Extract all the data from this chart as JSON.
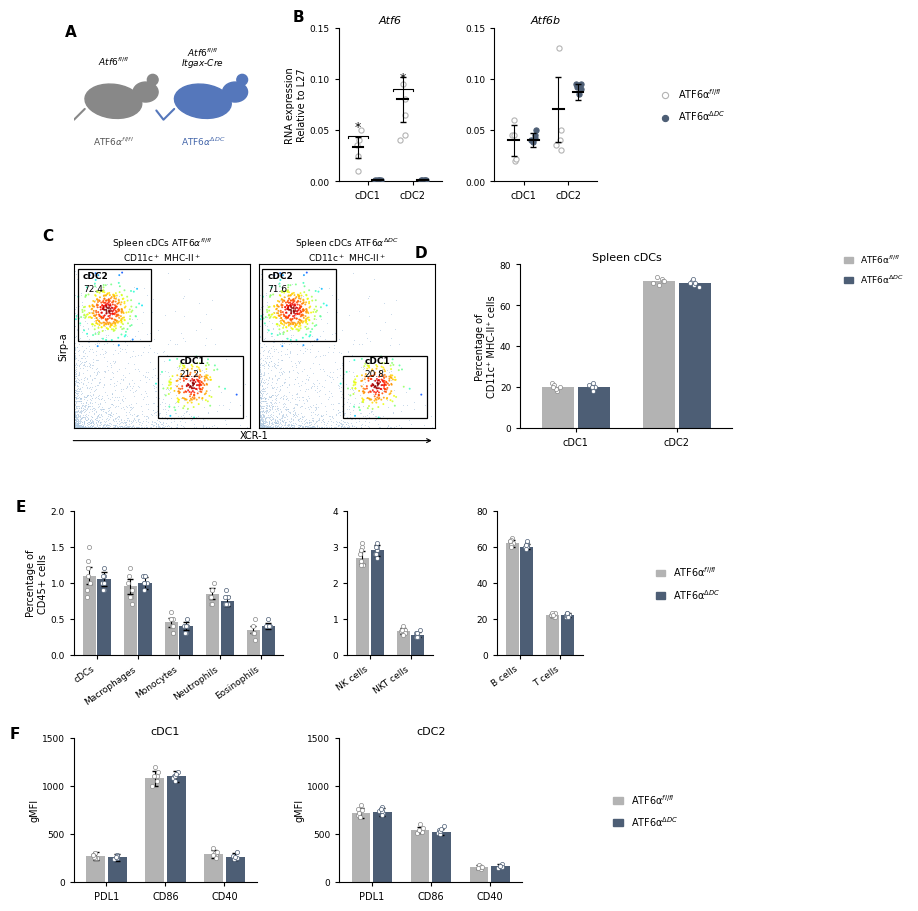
{
  "color_light": "#b3b3b3",
  "color_dark": "#4d5e75",
  "B_Atf6_categories": [
    "cDC1",
    "cDC2"
  ],
  "B_Atf6_light_mean": [
    0.033,
    0.08
  ],
  "B_Atf6_light_err": [
    0.01,
    0.022
  ],
  "B_Atf6_dark_mean": [
    0.001,
    0.001
  ],
  "B_Atf6_dark_err": [
    0.0003,
    0.0003
  ],
  "B_Atf6_light_dots_cDC1": [
    0.025,
    0.04,
    0.035,
    0.01,
    0.05
  ],
  "B_Atf6_light_dots_cDC2": [
    0.095,
    0.045,
    0.065,
    0.08,
    0.04
  ],
  "B_Atf6_dark_dots_cDC1": [
    0.001,
    0.0015,
    0.001,
    0.001,
    0.001
  ],
  "B_Atf6_dark_dots_cDC2": [
    0.001,
    0.001,
    0.0015,
    0.001,
    0.001
  ],
  "B_Atf6_ylim": [
    0,
    0.15
  ],
  "B_Atf6_yticks": [
    0.0,
    0.05,
    0.1,
    0.15
  ],
  "B_Atf6_title": "Atf6",
  "B_Atf6_ylabel": "RNA expression\nRelative to L27",
  "B_Atf6b_categories": [
    "cDC1",
    "cDC2"
  ],
  "B_Atf6b_light_mean": [
    0.04,
    0.07
  ],
  "B_Atf6b_light_err": [
    0.015,
    0.032
  ],
  "B_Atf6b_dark_mean": [
    0.04,
    0.087
  ],
  "B_Atf6b_dark_err": [
    0.007,
    0.008
  ],
  "B_Atf6b_light_dots_cDC1": [
    0.06,
    0.02,
    0.045,
    0.045,
    0.022
  ],
  "B_Atf6b_light_dots_cDC2": [
    0.13,
    0.03,
    0.05,
    0.04,
    0.035
  ],
  "B_Atf6b_dark_dots_cDC1": [
    0.04,
    0.045,
    0.038,
    0.042,
    0.05
  ],
  "B_Atf6b_dark_dots_cDC2": [
    0.09,
    0.085,
    0.095,
    0.095,
    0.092
  ],
  "B_Atf6b_ylim": [
    0,
    0.15
  ],
  "B_Atf6b_yticks": [
    0.0,
    0.05,
    0.1,
    0.15
  ],
  "B_Atf6b_title": "Atf6b",
  "D_categories": [
    "cDC1",
    "cDC2"
  ],
  "D_light_values": [
    20,
    72
  ],
  "D_dark_values": [
    20,
    71
  ],
  "D_light_dots": [
    [
      18,
      20,
      22,
      19,
      21,
      20
    ],
    [
      70,
      73,
      72,
      71,
      74,
      72
    ]
  ],
  "D_dark_dots": [
    [
      19,
      21,
      20,
      18,
      22,
      20
    ],
    [
      69,
      72,
      71,
      70,
      73,
      71
    ]
  ],
  "D_ylim": [
    0,
    80
  ],
  "D_yticks": [
    0,
    20,
    40,
    60,
    80
  ],
  "D_ylabel": "Percentage of\nCD11c⁺ MHC-II⁺ cells",
  "D_title": "Spleen cDCs",
  "E1_categories": [
    "cDCs",
    "Macrophages",
    "Monocytes",
    "Neutrophils",
    "Eosinophils"
  ],
  "E1_light_values": [
    1.1,
    0.95,
    0.45,
    0.85,
    0.35
  ],
  "E1_light_err": [
    0.12,
    0.1,
    0.06,
    0.08,
    0.05
  ],
  "E1_dark_values": [
    1.05,
    1.0,
    0.4,
    0.75,
    0.4
  ],
  "E1_dark_err": [
    0.1,
    0.08,
    0.05,
    0.07,
    0.04
  ],
  "E1_light_dots": [
    [
      1.5,
      1.0,
      0.9,
      1.3,
      1.1,
      0.8,
      1.2
    ],
    [
      1.2,
      0.8,
      0.9,
      1.0,
      1.1,
      0.7,
      0.8
    ],
    [
      0.6,
      0.3,
      0.4,
      0.5,
      0.5,
      0.3,
      0.4
    ],
    [
      0.9,
      0.8,
      1.0,
      0.7,
      0.9,
      0.8,
      0.7
    ],
    [
      0.5,
      0.3,
      0.4,
      0.3,
      0.3,
      0.3,
      0.2
    ]
  ],
  "E1_dark_dots": [
    [
      1.2,
      1.0,
      0.9,
      1.1,
      1.0,
      0.9,
      1.1
    ],
    [
      1.0,
      0.9,
      1.1,
      1.0,
      1.0,
      1.1,
      0.9
    ],
    [
      0.5,
      0.3,
      0.4,
      0.3,
      0.4,
      0.4,
      0.3
    ],
    [
      0.9,
      0.7,
      0.8,
      0.7,
      0.8,
      0.7,
      0.7
    ],
    [
      0.5,
      0.4,
      0.4,
      0.4,
      0.4,
      0.4,
      0.4
    ]
  ],
  "E1_ylim": [
    0,
    2.0
  ],
  "E1_yticks": [
    0.0,
    0.5,
    1.0,
    1.5,
    2.0
  ],
  "E1_ylabel": "Percentage of\nCD45+ cells",
  "E2_categories": [
    "NK cells",
    "NKT cells"
  ],
  "E2_light_values": [
    2.7,
    0.65
  ],
  "E2_light_err": [
    0.18,
    0.08
  ],
  "E2_dark_values": [
    2.9,
    0.55
  ],
  "E2_dark_err": [
    0.15,
    0.07
  ],
  "E2_light_dots": [
    [
      3.0,
      2.5,
      2.8,
      3.1,
      2.6,
      2.9,
      2.5
    ],
    [
      0.8,
      0.6,
      0.7,
      0.65,
      0.7,
      0.6,
      0.55
    ]
  ],
  "E2_dark_dots": [
    [
      3.1,
      2.8,
      2.9,
      3.0,
      2.7,
      3.0,
      2.8
    ],
    [
      0.7,
      0.5,
      0.6,
      0.55,
      0.6,
      0.5,
      0.5
    ]
  ],
  "E2_ylim": [
    0,
    4
  ],
  "E2_yticks": [
    0,
    1,
    2,
    3,
    4
  ],
  "E3_categories": [
    "B cells",
    "T cells"
  ],
  "E3_light_values": [
    62,
    22
  ],
  "E3_light_err": [
    2.0,
    1.0
  ],
  "E3_dark_values": [
    60,
    22
  ],
  "E3_dark_err": [
    1.5,
    1.0
  ],
  "E3_light_dots": [
    [
      65,
      62,
      63,
      64,
      61,
      63,
      60
    ],
    [
      22,
      21,
      23,
      22,
      23,
      21,
      22
    ]
  ],
  "E3_dark_dots": [
    [
      62,
      60,
      61,
      63,
      60,
      61,
      59
    ],
    [
      22,
      21,
      22,
      23,
      22,
      21,
      23
    ]
  ],
  "E3_ylim": [
    0,
    80
  ],
  "E3_yticks": [
    0,
    20,
    40,
    60,
    80
  ],
  "F1_categories": [
    "PDL1",
    "CD86",
    "CD40"
  ],
  "F1_light_values": [
    270,
    1080,
    290
  ],
  "F1_light_err": [
    40,
    80,
    45
  ],
  "F1_dark_values": [
    255,
    1100,
    265
  ],
  "F1_dark_err": [
    35,
    60,
    35
  ],
  "F1_light_dots": [
    [
      300,
      250,
      280,
      250,
      260,
      280
    ],
    [
      1200,
      1100,
      1050,
      1000,
      1100,
      1150
    ],
    [
      350,
      280,
      300,
      250,
      280,
      310
    ]
  ],
  "F1_dark_dots": [
    [
      280,
      240,
      260,
      250,
      270,
      260
    ],
    [
      1150,
      1100,
      1080,
      1050,
      1100,
      1120
    ],
    [
      310,
      250,
      270,
      240,
      250,
      260
    ]
  ],
  "F1_ylim": [
    0,
    1500
  ],
  "F1_yticks": [
    0,
    500,
    1000,
    1500
  ],
  "F1_ylabel": "gMFI",
  "F1_title": "cDC1",
  "F2_categories": [
    "PDL1",
    "CD86",
    "CD40"
  ],
  "F2_light_values": [
    720,
    540,
    155
  ],
  "F2_light_err": [
    55,
    35,
    20
  ],
  "F2_dark_values": [
    730,
    520,
    165
  ],
  "F2_dark_err": [
    45,
    30,
    18
  ],
  "F2_light_dots": [
    [
      800,
      750,
      700,
      680,
      720,
      760
    ],
    [
      600,
      550,
      520,
      510,
      540,
      560
    ],
    [
      180,
      150,
      140,
      160,
      150,
      155
    ]
  ],
  "F2_dark_dots": [
    [
      780,
      740,
      720,
      700,
      740,
      760
    ],
    [
      580,
      540,
      510,
      500,
      530,
      550
    ],
    [
      190,
      160,
      150,
      170,
      160,
      165
    ]
  ],
  "F2_ylim": [
    0,
    1500
  ],
  "F2_yticks": [
    0,
    500,
    1000,
    1500
  ],
  "F2_ylabel": "gMFI",
  "F2_title": "cDC2",
  "legend_label_light": "ATF6α$^{fl/fl}$",
  "legend_label_dark": "ATF6α$^{ΔDC}$"
}
